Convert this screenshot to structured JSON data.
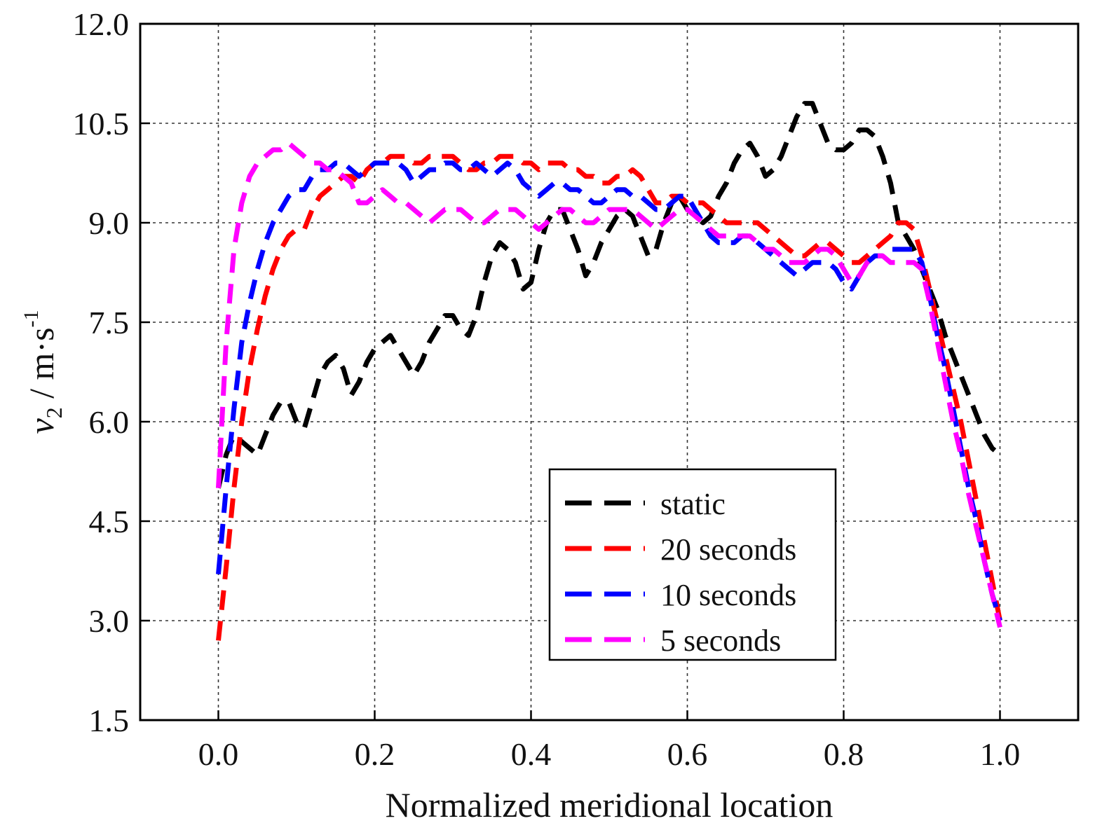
{
  "chart_data": {
    "type": "line",
    "xlabel": "Normalized meridional location",
    "ylabel": {
      "var": "v",
      "sub": "2",
      "unit": " / m·s",
      "sup": "-1"
    },
    "xlim": [
      -0.1,
      1.1
    ],
    "ylim": [
      1.5,
      12.0
    ],
    "xticks": [
      0.0,
      0.2,
      0.4,
      0.6,
      0.8,
      1.0
    ],
    "xtick_labels": [
      "0.0",
      "0.2",
      "0.4",
      "0.6",
      "0.8",
      "1.0"
    ],
    "yticks": [
      1.5,
      3.0,
      4.5,
      6.0,
      7.5,
      9.0,
      10.5,
      12.0
    ],
    "ytick_labels": [
      "1.5",
      "3.0",
      "4.5",
      "6.0",
      "7.5",
      "9.0",
      "10.5",
      "12.0"
    ],
    "grid": true,
    "legend_position": "lower-center-right",
    "series": [
      {
        "name": "static",
        "color": "#000000",
        "x": [
          0.0,
          0.01,
          0.02,
          0.03,
          0.04,
          0.05,
          0.06,
          0.07,
          0.08,
          0.09,
          0.1,
          0.11,
          0.12,
          0.13,
          0.14,
          0.15,
          0.16,
          0.17,
          0.18,
          0.19,
          0.2,
          0.21,
          0.22,
          0.23,
          0.24,
          0.25,
          0.26,
          0.27,
          0.28,
          0.29,
          0.3,
          0.31,
          0.32,
          0.33,
          0.34,
          0.35,
          0.36,
          0.37,
          0.38,
          0.39,
          0.4,
          0.41,
          0.42,
          0.43,
          0.44,
          0.45,
          0.46,
          0.47,
          0.48,
          0.49,
          0.5,
          0.51,
          0.52,
          0.53,
          0.54,
          0.55,
          0.56,
          0.57,
          0.58,
          0.59,
          0.6,
          0.61,
          0.62,
          0.63,
          0.64,
          0.65,
          0.66,
          0.67,
          0.68,
          0.69,
          0.7,
          0.71,
          0.72,
          0.73,
          0.74,
          0.75,
          0.76,
          0.77,
          0.78,
          0.79,
          0.8,
          0.81,
          0.82,
          0.83,
          0.84,
          0.85,
          0.86,
          0.87,
          0.88,
          0.89,
          0.9,
          0.91,
          0.92,
          0.93,
          0.94,
          0.95,
          0.96,
          0.97,
          0.98,
          0.99,
          1.0
        ],
        "y": [
          5.0,
          5.5,
          5.8,
          5.7,
          5.6,
          5.5,
          5.8,
          6.1,
          6.3,
          6.3,
          6.0,
          5.9,
          6.3,
          6.7,
          6.9,
          7.0,
          6.8,
          6.4,
          6.6,
          6.9,
          7.1,
          7.2,
          7.3,
          7.1,
          6.9,
          6.7,
          6.9,
          7.2,
          7.4,
          7.6,
          7.6,
          7.4,
          7.3,
          7.6,
          8.1,
          8.5,
          8.7,
          8.6,
          8.4,
          8.0,
          8.1,
          8.6,
          9.0,
          9.2,
          9.2,
          8.9,
          8.6,
          8.2,
          8.4,
          8.7,
          8.9,
          9.1,
          9.2,
          9.1,
          8.8,
          8.5,
          8.6,
          9.0,
          9.3,
          9.4,
          9.2,
          9.1,
          9.0,
          9.1,
          9.4,
          9.6,
          9.9,
          10.1,
          10.2,
          10.0,
          9.7,
          9.8,
          10.0,
          10.3,
          10.6,
          10.8,
          10.8,
          10.5,
          10.2,
          10.1,
          10.1,
          10.2,
          10.4,
          10.4,
          10.3,
          10.0,
          9.6,
          9.0,
          8.8,
          8.6,
          8.3,
          8.0,
          7.7,
          7.3,
          7.0,
          6.7,
          6.4,
          6.1,
          5.8,
          5.6,
          5.5
        ]
      },
      {
        "name": "20 seconds",
        "color": "#ff0000",
        "x": [
          0.0,
          0.01,
          0.02,
          0.03,
          0.04,
          0.05,
          0.06,
          0.07,
          0.08,
          0.09,
          0.1,
          0.11,
          0.12,
          0.13,
          0.14,
          0.15,
          0.16,
          0.17,
          0.18,
          0.19,
          0.2,
          0.21,
          0.22,
          0.23,
          0.24,
          0.25,
          0.26,
          0.27,
          0.28,
          0.29,
          0.3,
          0.31,
          0.32,
          0.33,
          0.34,
          0.35,
          0.36,
          0.37,
          0.38,
          0.39,
          0.4,
          0.41,
          0.42,
          0.43,
          0.44,
          0.45,
          0.46,
          0.47,
          0.48,
          0.49,
          0.5,
          0.51,
          0.52,
          0.53,
          0.54,
          0.55,
          0.56,
          0.57,
          0.58,
          0.59,
          0.6,
          0.61,
          0.62,
          0.63,
          0.64,
          0.65,
          0.66,
          0.67,
          0.68,
          0.69,
          0.7,
          0.71,
          0.72,
          0.73,
          0.74,
          0.75,
          0.76,
          0.77,
          0.78,
          0.79,
          0.8,
          0.81,
          0.82,
          0.83,
          0.84,
          0.85,
          0.86,
          0.87,
          0.88,
          0.89,
          0.9,
          0.91,
          0.92,
          0.93,
          0.94,
          0.95,
          0.96,
          0.97,
          0.98,
          0.99,
          1.0
        ],
        "y": [
          2.7,
          3.8,
          5.0,
          6.0,
          6.8,
          7.4,
          7.9,
          8.3,
          8.6,
          8.8,
          8.9,
          8.9,
          9.2,
          9.4,
          9.5,
          9.6,
          9.7,
          9.7,
          9.6,
          9.8,
          9.9,
          9.9,
          10.0,
          10.0,
          10.0,
          9.9,
          9.9,
          10.0,
          10.0,
          10.0,
          10.0,
          9.9,
          9.8,
          9.8,
          9.9,
          9.9,
          10.0,
          10.0,
          10.0,
          9.9,
          9.9,
          9.8,
          9.9,
          9.9,
          9.9,
          9.8,
          9.8,
          9.7,
          9.7,
          9.6,
          9.6,
          9.7,
          9.7,
          9.8,
          9.7,
          9.5,
          9.3,
          9.3,
          9.4,
          9.4,
          9.3,
          9.3,
          9.3,
          9.2,
          9.1,
          9.0,
          9.0,
          9.0,
          9.0,
          9.0,
          8.9,
          8.8,
          8.7,
          8.6,
          8.5,
          8.5,
          8.6,
          8.7,
          8.7,
          8.6,
          8.5,
          8.4,
          8.4,
          8.5,
          8.6,
          8.7,
          8.8,
          9.0,
          9.0,
          8.9,
          8.5,
          8.0,
          7.5,
          7.0,
          6.5,
          6.0,
          5.4,
          4.8,
          4.2,
          3.6,
          3.0
        ]
      },
      {
        "name": "10 seconds",
        "color": "#0000ff",
        "x": [
          0.0,
          0.01,
          0.02,
          0.03,
          0.04,
          0.05,
          0.06,
          0.07,
          0.08,
          0.09,
          0.1,
          0.11,
          0.12,
          0.13,
          0.14,
          0.15,
          0.16,
          0.17,
          0.18,
          0.19,
          0.2,
          0.21,
          0.22,
          0.23,
          0.24,
          0.25,
          0.26,
          0.27,
          0.28,
          0.29,
          0.3,
          0.31,
          0.32,
          0.33,
          0.34,
          0.35,
          0.36,
          0.37,
          0.38,
          0.39,
          0.4,
          0.41,
          0.42,
          0.43,
          0.44,
          0.45,
          0.46,
          0.47,
          0.48,
          0.49,
          0.5,
          0.51,
          0.52,
          0.53,
          0.54,
          0.55,
          0.56,
          0.57,
          0.58,
          0.59,
          0.6,
          0.61,
          0.62,
          0.63,
          0.64,
          0.65,
          0.66,
          0.67,
          0.68,
          0.69,
          0.7,
          0.71,
          0.72,
          0.73,
          0.74,
          0.75,
          0.76,
          0.77,
          0.78,
          0.79,
          0.8,
          0.81,
          0.82,
          0.83,
          0.84,
          0.85,
          0.86,
          0.87,
          0.88,
          0.89,
          0.9,
          0.91,
          0.92,
          0.93,
          0.94,
          0.95,
          0.96,
          0.97,
          0.98,
          0.99,
          1.0
        ],
        "y": [
          3.7,
          5.0,
          6.2,
          7.2,
          7.8,
          8.3,
          8.7,
          9.0,
          9.2,
          9.4,
          9.5,
          9.5,
          9.7,
          9.8,
          9.8,
          9.9,
          9.9,
          9.8,
          9.7,
          9.8,
          9.9,
          9.9,
          9.9,
          9.9,
          9.8,
          9.6,
          9.7,
          9.8,
          9.8,
          9.9,
          9.9,
          9.8,
          9.8,
          9.9,
          9.8,
          9.7,
          9.8,
          9.9,
          9.8,
          9.6,
          9.5,
          9.4,
          9.5,
          9.6,
          9.6,
          9.5,
          9.5,
          9.4,
          9.3,
          9.3,
          9.4,
          9.5,
          9.5,
          9.4,
          9.4,
          9.3,
          9.2,
          9.2,
          9.3,
          9.4,
          9.4,
          9.2,
          9.0,
          8.8,
          8.7,
          8.7,
          8.7,
          8.8,
          8.8,
          8.7,
          8.6,
          8.5,
          8.4,
          8.3,
          8.2,
          8.3,
          8.4,
          8.4,
          8.4,
          8.3,
          8.1,
          8.0,
          8.2,
          8.4,
          8.5,
          8.5,
          8.6,
          8.6,
          8.6,
          8.6,
          8.4,
          7.9,
          7.3,
          6.8,
          6.2,
          5.6,
          5.0,
          4.5,
          3.9,
          3.4,
          3.0
        ]
      },
      {
        "name": "5 seconds",
        "color": "#ff00ff",
        "x": [
          0.0,
          0.01,
          0.02,
          0.03,
          0.04,
          0.05,
          0.06,
          0.07,
          0.08,
          0.09,
          0.1,
          0.11,
          0.12,
          0.13,
          0.14,
          0.15,
          0.16,
          0.17,
          0.18,
          0.19,
          0.2,
          0.21,
          0.22,
          0.23,
          0.24,
          0.25,
          0.26,
          0.27,
          0.28,
          0.29,
          0.3,
          0.31,
          0.32,
          0.33,
          0.34,
          0.35,
          0.36,
          0.37,
          0.38,
          0.39,
          0.4,
          0.41,
          0.42,
          0.43,
          0.44,
          0.45,
          0.46,
          0.47,
          0.48,
          0.49,
          0.5,
          0.51,
          0.52,
          0.53,
          0.54,
          0.55,
          0.56,
          0.57,
          0.58,
          0.59,
          0.6,
          0.61,
          0.62,
          0.63,
          0.64,
          0.65,
          0.66,
          0.67,
          0.68,
          0.69,
          0.7,
          0.71,
          0.72,
          0.73,
          0.74,
          0.75,
          0.76,
          0.77,
          0.78,
          0.79,
          0.8,
          0.81,
          0.82,
          0.83,
          0.84,
          0.85,
          0.86,
          0.87,
          0.88,
          0.89,
          0.9,
          0.91,
          0.92,
          0.93,
          0.94,
          0.95,
          0.96,
          0.97,
          0.98,
          0.99,
          1.0
        ],
        "y": [
          5.0,
          7.2,
          8.6,
          9.3,
          9.7,
          9.9,
          10.0,
          10.1,
          10.1,
          10.2,
          10.1,
          10.0,
          9.9,
          9.9,
          9.8,
          9.8,
          9.7,
          9.6,
          9.3,
          9.3,
          9.4,
          9.5,
          9.4,
          9.3,
          9.3,
          9.2,
          9.1,
          9.0,
          9.1,
          9.2,
          9.2,
          9.2,
          9.1,
          9.0,
          9.0,
          9.1,
          9.2,
          9.2,
          9.2,
          9.1,
          9.0,
          8.9,
          9.0,
          9.1,
          9.2,
          9.2,
          9.1,
          9.0,
          9.0,
          9.1,
          9.2,
          9.2,
          9.2,
          9.2,
          9.1,
          9.0,
          8.9,
          9.0,
          9.1,
          9.2,
          9.2,
          9.1,
          9.0,
          8.9,
          8.8,
          8.8,
          8.8,
          8.8,
          8.8,
          8.7,
          8.6,
          8.6,
          8.5,
          8.4,
          8.4,
          8.4,
          8.5,
          8.6,
          8.6,
          8.5,
          8.3,
          8.1,
          8.2,
          8.4,
          8.5,
          8.5,
          8.4,
          8.4,
          8.4,
          8.4,
          8.3,
          7.8,
          7.2,
          6.6,
          6.0,
          5.5,
          4.9,
          4.4,
          3.9,
          3.4,
          2.9
        ]
      }
    ]
  }
}
